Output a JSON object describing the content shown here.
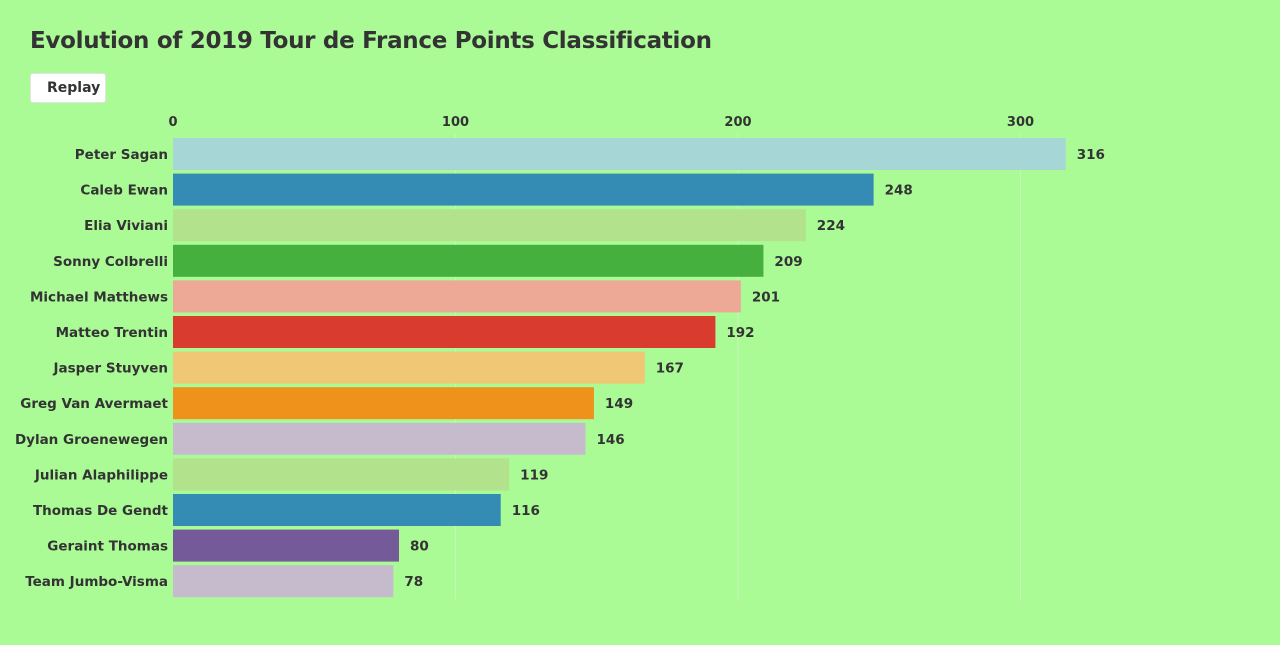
{
  "header": {
    "title": "Evolution of 2019 Tour de France Points Classification",
    "replay_label": "Replay"
  },
  "colors": {
    "background": "#aafa96",
    "gridline": "#c8f5bc"
  },
  "chart_data": {
    "type": "bar",
    "orientation": "horizontal",
    "title": "Evolution of 2019 Tour de France Points Classification",
    "xlabel": "",
    "ylabel": "",
    "xlim": [
      0,
      330
    ],
    "x_ticks": [
      0,
      100,
      200,
      300
    ],
    "grid": true,
    "categories": [
      "Peter Sagan",
      "Caleb Ewan",
      "Elia Viviani",
      "Sonny Colbrelli",
      "Michael Matthews",
      "Matteo Trentin",
      "Jasper Stuyven",
      "Greg Van Avermaet",
      "Dylan Groenewegen",
      "Julian Alaphilippe",
      "Thomas De Gendt",
      "Geraint Thomas",
      "Team Jumbo-Visma"
    ],
    "values": [
      316,
      248,
      224,
      209,
      201,
      192,
      167,
      149,
      146,
      119,
      116,
      80,
      78
    ],
    "bar_colors": [
      "#a6d6d6",
      "#348bb4",
      "#b2e38c",
      "#46b03e",
      "#eda896",
      "#da3b2f",
      "#f0c775",
      "#ef921b",
      "#c6bbcd",
      "#b2e38c",
      "#348bb4",
      "#755a99",
      "#c6bbcd"
    ]
  }
}
